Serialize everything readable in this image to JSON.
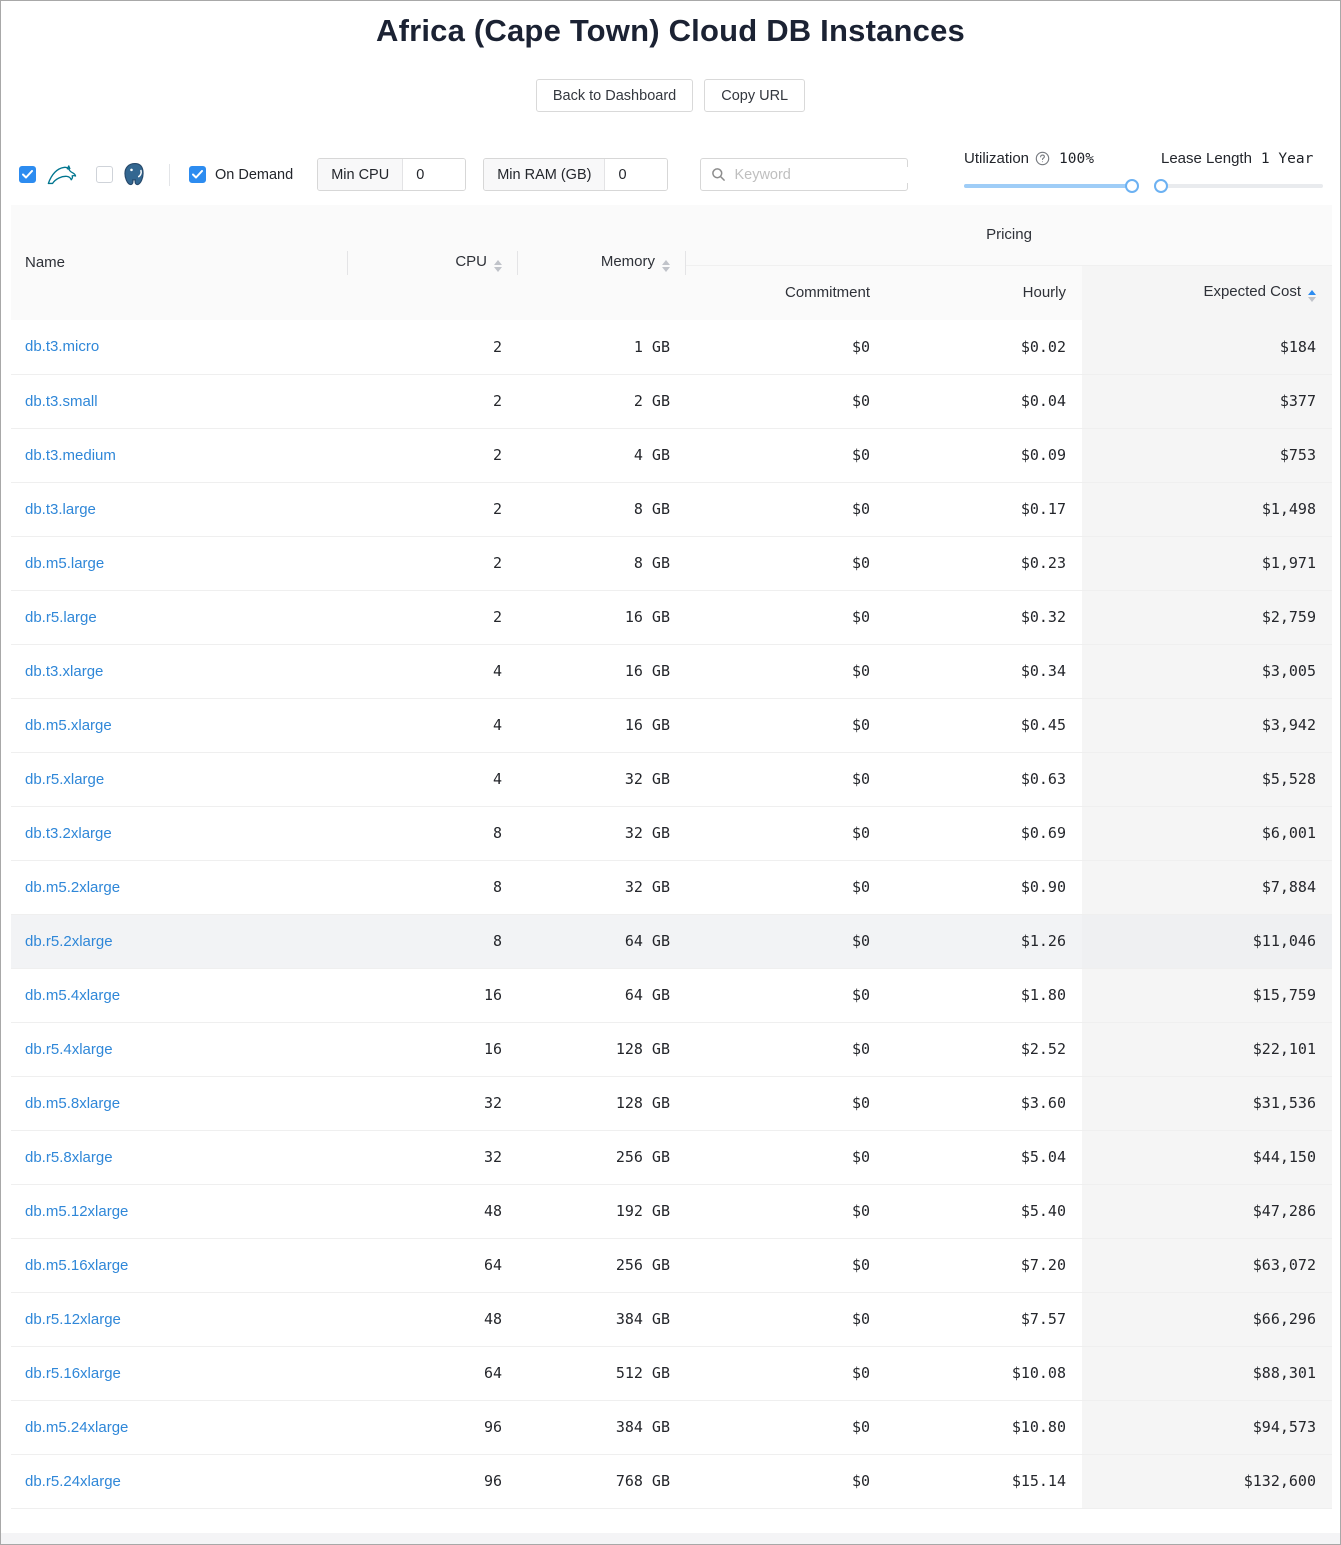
{
  "page": {
    "title": "Africa (Cape Town) Cloud DB Instances"
  },
  "toolbar": {
    "back_label": "Back to Dashboard",
    "copy_url_label": "Copy URL"
  },
  "filters": {
    "mysql": {
      "checked": true,
      "icon": "mysql-dolphin-icon",
      "color": "#00758f"
    },
    "postgres": {
      "checked": false,
      "icon": "postgres-elephant-icon",
      "color": "#336791"
    },
    "on_demand": {
      "label": "On Demand",
      "checked": true
    },
    "min_cpu": {
      "label": "Min CPU",
      "value": "0"
    },
    "min_ram": {
      "label": "Min RAM (GB)",
      "value": "0"
    },
    "keyword": {
      "placeholder": "Keyword",
      "icon": "search-icon"
    },
    "utilization": {
      "label": "Utilization",
      "value": "100%",
      "percent": 100,
      "help_icon": "question-circle-icon"
    },
    "lease_length": {
      "label": "Lease Length",
      "value": "1 Year",
      "percent": 0
    }
  },
  "table": {
    "columns": {
      "name": "Name",
      "cpu": "CPU",
      "memory": "Memory",
      "pricing": "Pricing",
      "commitment": "Commitment",
      "hourly": "Hourly",
      "expected": "Expected Cost"
    },
    "sort": {
      "column": "expected",
      "direction": "asc"
    },
    "hovered_row_index": 11,
    "rows": [
      {
        "name": "db.t3.micro",
        "cpu": "2",
        "memory": "1 GB",
        "commitment": "$0",
        "hourly": "$0.02",
        "expected": "$184"
      },
      {
        "name": "db.t3.small",
        "cpu": "2",
        "memory": "2 GB",
        "commitment": "$0",
        "hourly": "$0.04",
        "expected": "$377"
      },
      {
        "name": "db.t3.medium",
        "cpu": "2",
        "memory": "4 GB",
        "commitment": "$0",
        "hourly": "$0.09",
        "expected": "$753"
      },
      {
        "name": "db.t3.large",
        "cpu": "2",
        "memory": "8 GB",
        "commitment": "$0",
        "hourly": "$0.17",
        "expected": "$1,498"
      },
      {
        "name": "db.m5.large",
        "cpu": "2",
        "memory": "8 GB",
        "commitment": "$0",
        "hourly": "$0.23",
        "expected": "$1,971"
      },
      {
        "name": "db.r5.large",
        "cpu": "2",
        "memory": "16 GB",
        "commitment": "$0",
        "hourly": "$0.32",
        "expected": "$2,759"
      },
      {
        "name": "db.t3.xlarge",
        "cpu": "4",
        "memory": "16 GB",
        "commitment": "$0",
        "hourly": "$0.34",
        "expected": "$3,005"
      },
      {
        "name": "db.m5.xlarge",
        "cpu": "4",
        "memory": "16 GB",
        "commitment": "$0",
        "hourly": "$0.45",
        "expected": "$3,942"
      },
      {
        "name": "db.r5.xlarge",
        "cpu": "4",
        "memory": "32 GB",
        "commitment": "$0",
        "hourly": "$0.63",
        "expected": "$5,528"
      },
      {
        "name": "db.t3.2xlarge",
        "cpu": "8",
        "memory": "32 GB",
        "commitment": "$0",
        "hourly": "$0.69",
        "expected": "$6,001"
      },
      {
        "name": "db.m5.2xlarge",
        "cpu": "8",
        "memory": "32 GB",
        "commitment": "$0",
        "hourly": "$0.90",
        "expected": "$7,884"
      },
      {
        "name": "db.r5.2xlarge",
        "cpu": "8",
        "memory": "64 GB",
        "commitment": "$0",
        "hourly": "$1.26",
        "expected": "$11,046"
      },
      {
        "name": "db.m5.4xlarge",
        "cpu": "16",
        "memory": "64 GB",
        "commitment": "$0",
        "hourly": "$1.80",
        "expected": "$15,759"
      },
      {
        "name": "db.r5.4xlarge",
        "cpu": "16",
        "memory": "128 GB",
        "commitment": "$0",
        "hourly": "$2.52",
        "expected": "$22,101"
      },
      {
        "name": "db.m5.8xlarge",
        "cpu": "32",
        "memory": "128 GB",
        "commitment": "$0",
        "hourly": "$3.60",
        "expected": "$31,536"
      },
      {
        "name": "db.r5.8xlarge",
        "cpu": "32",
        "memory": "256 GB",
        "commitment": "$0",
        "hourly": "$5.04",
        "expected": "$44,150"
      },
      {
        "name": "db.m5.12xlarge",
        "cpu": "48",
        "memory": "192 GB",
        "commitment": "$0",
        "hourly": "$5.40",
        "expected": "$47,286"
      },
      {
        "name": "db.m5.16xlarge",
        "cpu": "64",
        "memory": "256 GB",
        "commitment": "$0",
        "hourly": "$7.20",
        "expected": "$63,072"
      },
      {
        "name": "db.r5.12xlarge",
        "cpu": "48",
        "memory": "384 GB",
        "commitment": "$0",
        "hourly": "$7.57",
        "expected": "$66,296"
      },
      {
        "name": "db.r5.16xlarge",
        "cpu": "64",
        "memory": "512 GB",
        "commitment": "$0",
        "hourly": "$10.08",
        "expected": "$88,301"
      },
      {
        "name": "db.m5.24xlarge",
        "cpu": "96",
        "memory": "384 GB",
        "commitment": "$0",
        "hourly": "$10.80",
        "expected": "$94,573"
      },
      {
        "name": "db.r5.24xlarge",
        "cpu": "96",
        "memory": "768 GB",
        "commitment": "$0",
        "hourly": "$15.14",
        "expected": "$132,600"
      }
    ]
  },
  "colors": {
    "accent": "#2d8cf0",
    "link": "#2f87d8",
    "slider_fill": "#9fcdf7",
    "sorted_column_bg": "#f5f5f5",
    "mysql_icon": "#00758f",
    "postgres_icon": "#336791"
  }
}
